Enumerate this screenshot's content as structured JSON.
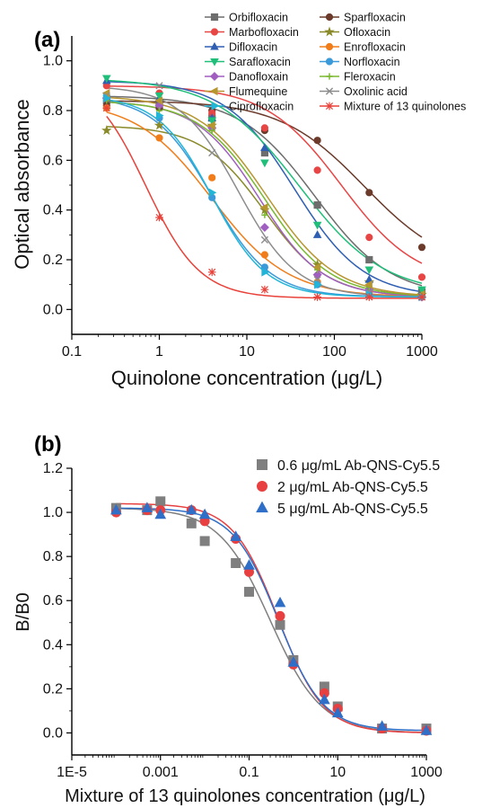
{
  "chart_data": [
    {
      "panel_label": "(a)",
      "type": "scatter",
      "xlabel": "Quinolone concentration (μg/L)",
      "ylabel": "Optical absorbance",
      "xscale": "log",
      "xlim": [
        0.1,
        1000
      ],
      "ylim": [
        -0.1,
        1.1
      ],
      "xticks": [
        "0.1",
        "1",
        "10",
        "100",
        "1000"
      ],
      "yticks": [
        "0.0",
        "0.2",
        "0.4",
        "0.6",
        "0.8",
        "1.0"
      ],
      "legend_position": "top-right",
      "x": [
        0.25,
        1,
        4,
        16,
        64,
        250,
        1000
      ],
      "series": [
        {
          "name": "Orbifloxacin",
          "color": "#6d6d6d",
          "marker": "square",
          "values": [
            0.84,
            0.82,
            0.77,
            0.63,
            0.42,
            0.2,
            0.07
          ],
          "fit": {
            "top": 0.86,
            "bottom": 0.05,
            "ic50": 60,
            "slope": 1.0
          }
        },
        {
          "name": "Sparfloxacin",
          "color": "#6b3a2a",
          "marker": "circle",
          "values": [
            0.82,
            0.81,
            0.8,
            0.72,
            0.68,
            0.47,
            0.25
          ],
          "fit": {
            "top": 0.84,
            "bottom": 0.15,
            "ic50": 220,
            "slope": 0.9
          }
        },
        {
          "name": "Marbofloxacin",
          "color": "#e84545",
          "marker": "circle",
          "values": [
            0.9,
            0.87,
            0.79,
            0.73,
            0.56,
            0.29,
            0.13
          ],
          "fit": {
            "top": 0.9,
            "bottom": 0.1,
            "ic50": 120,
            "slope": 1.0
          }
        },
        {
          "name": "Ofloxacin",
          "color": "#8a8a2a",
          "marker": "star",
          "values": [
            0.72,
            0.74,
            0.74,
            0.4,
            0.18,
            0.11,
            0.06
          ],
          "fit": {
            "top": 0.74,
            "bottom": 0.05,
            "ic50": 16,
            "slope": 1.2
          }
        },
        {
          "name": "Difloxacin",
          "color": "#2f5fb3",
          "marker": "triangle",
          "values": [
            0.92,
            0.85,
            0.77,
            0.65,
            0.3,
            0.12,
            0.06
          ],
          "fit": {
            "top": 0.92,
            "bottom": 0.05,
            "ic50": 35,
            "slope": 1.1
          }
        },
        {
          "name": "Enrofloxacin",
          "color": "#f07d1a",
          "marker": "circle",
          "values": [
            0.81,
            0.69,
            0.53,
            0.22,
            0.11,
            0.07,
            0.05
          ],
          "fit": {
            "top": 0.84,
            "bottom": 0.05,
            "ic50": 4,
            "slope": 1.0
          }
        },
        {
          "name": "Sarafloxacin",
          "color": "#1fbf7a",
          "marker": "triangle-down",
          "values": [
            0.93,
            0.86,
            0.76,
            0.59,
            0.34,
            0.16,
            0.08
          ],
          "fit": {
            "top": 0.93,
            "bottom": 0.06,
            "ic50": 40,
            "slope": 0.9
          }
        },
        {
          "name": "Norfloxacin",
          "color": "#3b9ad9",
          "marker": "circle",
          "values": [
            0.86,
            0.77,
            0.45,
            0.17,
            0.1,
            0.06,
            0.05
          ],
          "fit": {
            "top": 0.86,
            "bottom": 0.05,
            "ic50": 4,
            "slope": 1.3
          }
        },
        {
          "name": "Danofloxain",
          "color": "#a05fc0",
          "marker": "diamond",
          "values": [
            0.85,
            0.82,
            0.73,
            0.33,
            0.14,
            0.08,
            0.05
          ],
          "fit": {
            "top": 0.84,
            "bottom": 0.05,
            "ic50": 14,
            "slope": 1.2
          }
        },
        {
          "name": "Fleroxacin",
          "color": "#7ab82f",
          "marker": "plus",
          "values": [
            0.84,
            0.8,
            0.72,
            0.38,
            0.16,
            0.09,
            0.06
          ],
          "fit": {
            "top": 0.84,
            "bottom": 0.05,
            "ic50": 16,
            "slope": 1.15
          }
        },
        {
          "name": "Flumequine",
          "color": "#b8962f",
          "marker": "triangle-left",
          "values": [
            0.87,
            0.84,
            0.74,
            0.41,
            0.17,
            0.1,
            0.06
          ],
          "fit": {
            "top": 0.86,
            "bottom": 0.05,
            "ic50": 17,
            "slope": 1.1
          }
        },
        {
          "name": "Oxolinic acid",
          "color": "#8c8c8c",
          "marker": "x",
          "values": [
            0.86,
            0.9,
            0.63,
            0.28,
            0.12,
            0.07,
            0.05
          ],
          "fit": {
            "top": 0.9,
            "bottom": 0.05,
            "ic50": 8,
            "slope": 1.3
          }
        },
        {
          "name": "Ciprofloxacin",
          "color": "#23b5d8",
          "marker": "triangle-right",
          "values": [
            0.85,
            0.78,
            0.47,
            0.15,
            0.1,
            0.06,
            0.05
          ],
          "fit": {
            "top": 0.86,
            "bottom": 0.05,
            "ic50": 4,
            "slope": 1.4
          }
        },
        {
          "name": "Mixture of 13 quinolones",
          "color": "#e8423a",
          "marker": "asterisk",
          "values": [
            0.81,
            0.37,
            0.15,
            0.08,
            0.05,
            0.05,
            0.05
          ],
          "fit": {
            "top": 0.95,
            "bottom": 0.045,
            "ic50": 0.7,
            "slope": 1.4
          }
        }
      ]
    },
    {
      "panel_label": "(b)",
      "type": "scatter",
      "xlabel": "Mixture of 13 quinolones concentration (μg/L)",
      "ylabel": "B/B0",
      "xscale": "log",
      "xlim": [
        1e-05,
        1000
      ],
      "ylim": [
        -0.1,
        1.2
      ],
      "xticks": [
        "1E-5",
        "0.001",
        "0.1",
        "10",
        "1000"
      ],
      "yticks": [
        "0.0",
        "0.2",
        "0.4",
        "0.6",
        "0.8",
        "1.0",
        "1.2"
      ],
      "legend_position": "top-right",
      "x": [
        0.0001,
        0.0005,
        0.001,
        0.005,
        0.01,
        0.05,
        0.1,
        0.5,
        1,
        5,
        10,
        100,
        1000
      ],
      "series": [
        {
          "name": "0.6 μg/mL Ab-QNS-Cy5.5",
          "color": "#7f7f7f",
          "marker": "square",
          "values": [
            1.02,
            1.01,
            1.05,
            0.95,
            0.87,
            0.77,
            0.64,
            0.49,
            0.33,
            0.21,
            0.12,
            0.02,
            0.02
          ],
          "fit": {
            "top": 1.02,
            "bottom": 0.0,
            "ic50": 0.3,
            "slope": 0.75
          }
        },
        {
          "name": "2 μg/mL Ab-QNS-Cy5.5",
          "color": "#e84040",
          "marker": "circle",
          "values": [
            1.0,
            1.01,
            1.01,
            1.01,
            0.96,
            0.88,
            0.73,
            0.53,
            0.31,
            0.18,
            0.11,
            0.02,
            0.01
          ],
          "fit": {
            "top": 1.04,
            "bottom": 0.0,
            "ic50": 0.45,
            "slope": 0.85
          }
        },
        {
          "name": "5 μg/mL Ab-QNS-Cy5.5",
          "color": "#2f6fc8",
          "marker": "triangle",
          "values": [
            1.01,
            1.02,
            0.99,
            1.01,
            0.99,
            0.89,
            0.76,
            0.59,
            0.32,
            0.15,
            0.09,
            0.03,
            0.01
          ],
          "fit": {
            "top": 1.02,
            "bottom": 0.01,
            "ic50": 0.45,
            "slope": 0.85
          }
        }
      ]
    }
  ]
}
